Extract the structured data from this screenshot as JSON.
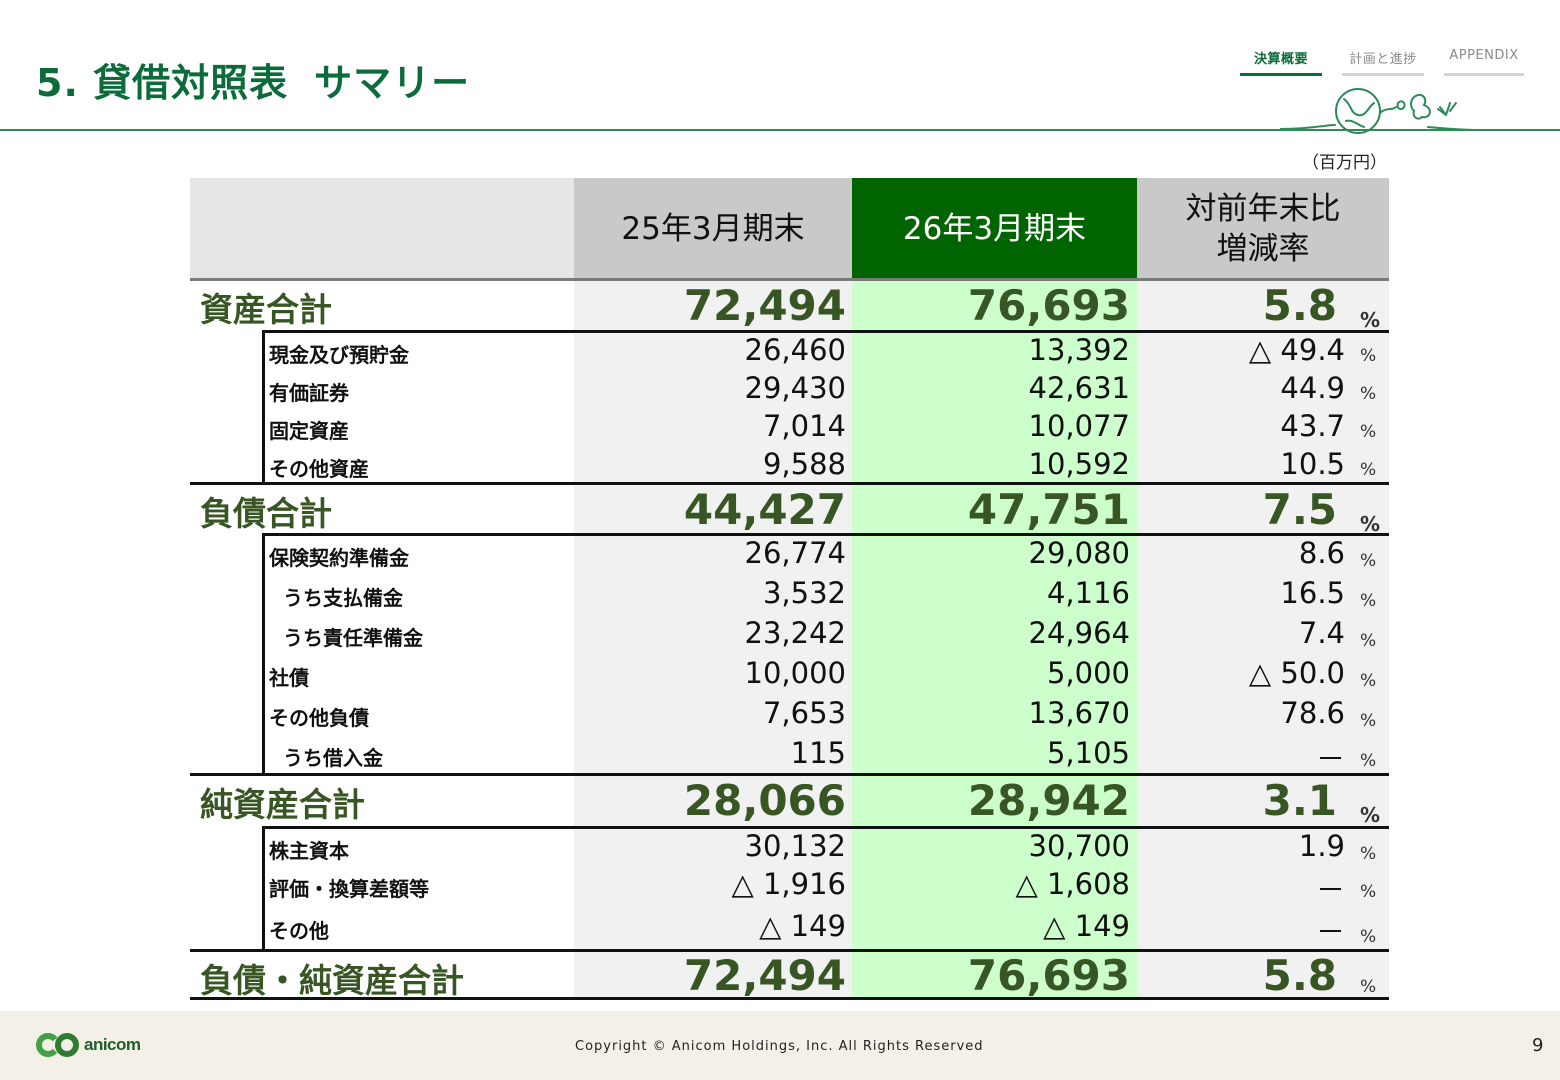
{
  "header": {
    "title": "5. 貸借対照表",
    "subtitle": "サマリー",
    "tabs": [
      {
        "label": "決算概要",
        "active": true
      },
      {
        "label": "計画と進捗",
        "active": false
      },
      {
        "label": "APPENDIX",
        "active": false
      }
    ]
  },
  "unit_label": "（百万円）",
  "table": {
    "headers": {
      "label": "",
      "prev": "25年3月期末",
      "current": "26年3月期末",
      "rate_line1": "対前年末比",
      "rate_line2": "増減率"
    },
    "percent_sign": "%",
    "rows": [
      {
        "label": "資産合計",
        "level": "major",
        "prev": "72,494",
        "current": "76,693",
        "rate": "5.8"
      },
      {
        "label": "現金及び預貯金",
        "level": "minor",
        "prev": "26,460",
        "current": "13,392",
        "rate": "△ 49.4"
      },
      {
        "label": "有価証券",
        "level": "minor",
        "prev": "29,430",
        "current": "42,631",
        "rate": "44.9"
      },
      {
        "label": "固定資産",
        "level": "minor",
        "prev": "7,014",
        "current": "10,077",
        "rate": "43.7"
      },
      {
        "label": "その他資産",
        "level": "minor",
        "prev": "9,588",
        "current": "10,592",
        "rate": "10.5"
      },
      {
        "label": "負債合計",
        "level": "major",
        "prev": "44,427",
        "current": "47,751",
        "rate": "7.5"
      },
      {
        "label": "保険契約準備金",
        "level": "minor",
        "prev": "26,774",
        "current": "29,080",
        "rate": "8.6"
      },
      {
        "label": "うち支払備金",
        "level": "minor",
        "prev": "3,532",
        "current": "4,116",
        "rate": "16.5"
      },
      {
        "label": "うち責任準備金",
        "level": "minor",
        "prev": "23,242",
        "current": "24,964",
        "rate": "7.4"
      },
      {
        "label": "社債",
        "level": "minor",
        "prev": "10,000",
        "current": "5,000",
        "rate": "△ 50.0"
      },
      {
        "label": "その他負債",
        "level": "minor",
        "prev": "7,653",
        "current": "13,670",
        "rate": "78.6"
      },
      {
        "label": "うち借入金",
        "level": "minor",
        "prev": "115",
        "current": "5,105",
        "rate": "－"
      },
      {
        "label": "純資産合計",
        "level": "major",
        "prev": "28,066",
        "current": "28,942",
        "rate": "3.1"
      },
      {
        "label": "株主資本",
        "level": "minor",
        "prev": "30,132",
        "current": "30,700",
        "rate": "1.9"
      },
      {
        "label": "評価・換算差額等",
        "level": "minor",
        "prev": "△ 1,916",
        "current": "△ 1,608",
        "rate": "－"
      },
      {
        "label": "その他",
        "level": "minor",
        "prev": "△ 149",
        "current": "△ 149",
        "rate": "－"
      },
      {
        "label": "負債・純資産合計",
        "level": "major",
        "prev": "72,494",
        "current": "76,693",
        "rate": "5.8"
      }
    ]
  },
  "footer": {
    "logo_text": "anicom",
    "copyright": "Copyright © Anicom Holdings, Inc. All Rights Reserved",
    "page_number": "9"
  },
  "colors": {
    "brand_green": "#0b6b3a",
    "header_current_bg": "#006400",
    "current_column_bg": "#ccffcc",
    "total_text": "#375623"
  },
  "icons": [
    "globe-animals-decoration-icon",
    "anicom-logo-icon"
  ]
}
